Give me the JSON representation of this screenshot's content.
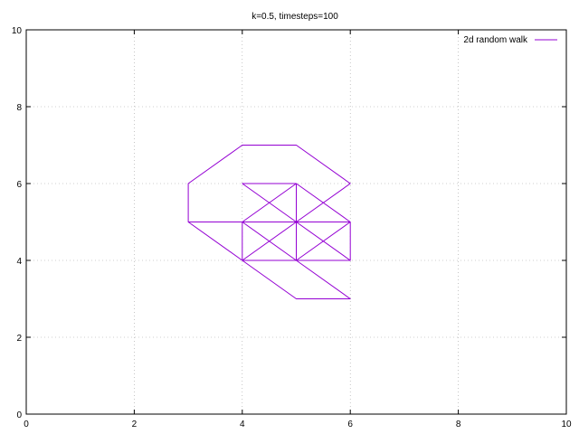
{
  "chart_data": {
    "type": "line",
    "title": "k=0.5, timesteps=100",
    "xlabel": "",
    "ylabel": "",
    "xlim": [
      0,
      10
    ],
    "ylim": [
      0,
      10
    ],
    "xticks": [
      0,
      2,
      4,
      6,
      8,
      10
    ],
    "yticks": [
      0,
      2,
      4,
      6,
      8,
      10
    ],
    "grid": true,
    "legend_position": "top-right",
    "series": [
      {
        "name": "2d random walk",
        "color": "#9400d3",
        "x": [
          5,
          4,
          5,
          6,
          6,
          5,
          4,
          4,
          5,
          6,
          5,
          4,
          5,
          6,
          6,
          5,
          4,
          4,
          3,
          3,
          4,
          5,
          6,
          5,
          4,
          5,
          6,
          5,
          4,
          4,
          5,
          5,
          6,
          5,
          4,
          3,
          4,
          5,
          5,
          6,
          6,
          5,
          4,
          5,
          6
        ],
        "y": [
          5,
          4,
          4,
          4,
          5,
          6,
          5,
          4,
          5,
          5,
          6,
          6,
          5,
          4,
          5,
          4,
          4,
          5,
          5,
          6,
          7,
          7,
          6,
          5,
          5,
          4,
          5,
          6,
          5,
          4,
          3,
          3,
          3,
          4,
          5,
          5,
          4,
          4,
          6,
          5,
          4,
          4,
          4,
          5,
          6
        ]
      }
    ]
  }
}
